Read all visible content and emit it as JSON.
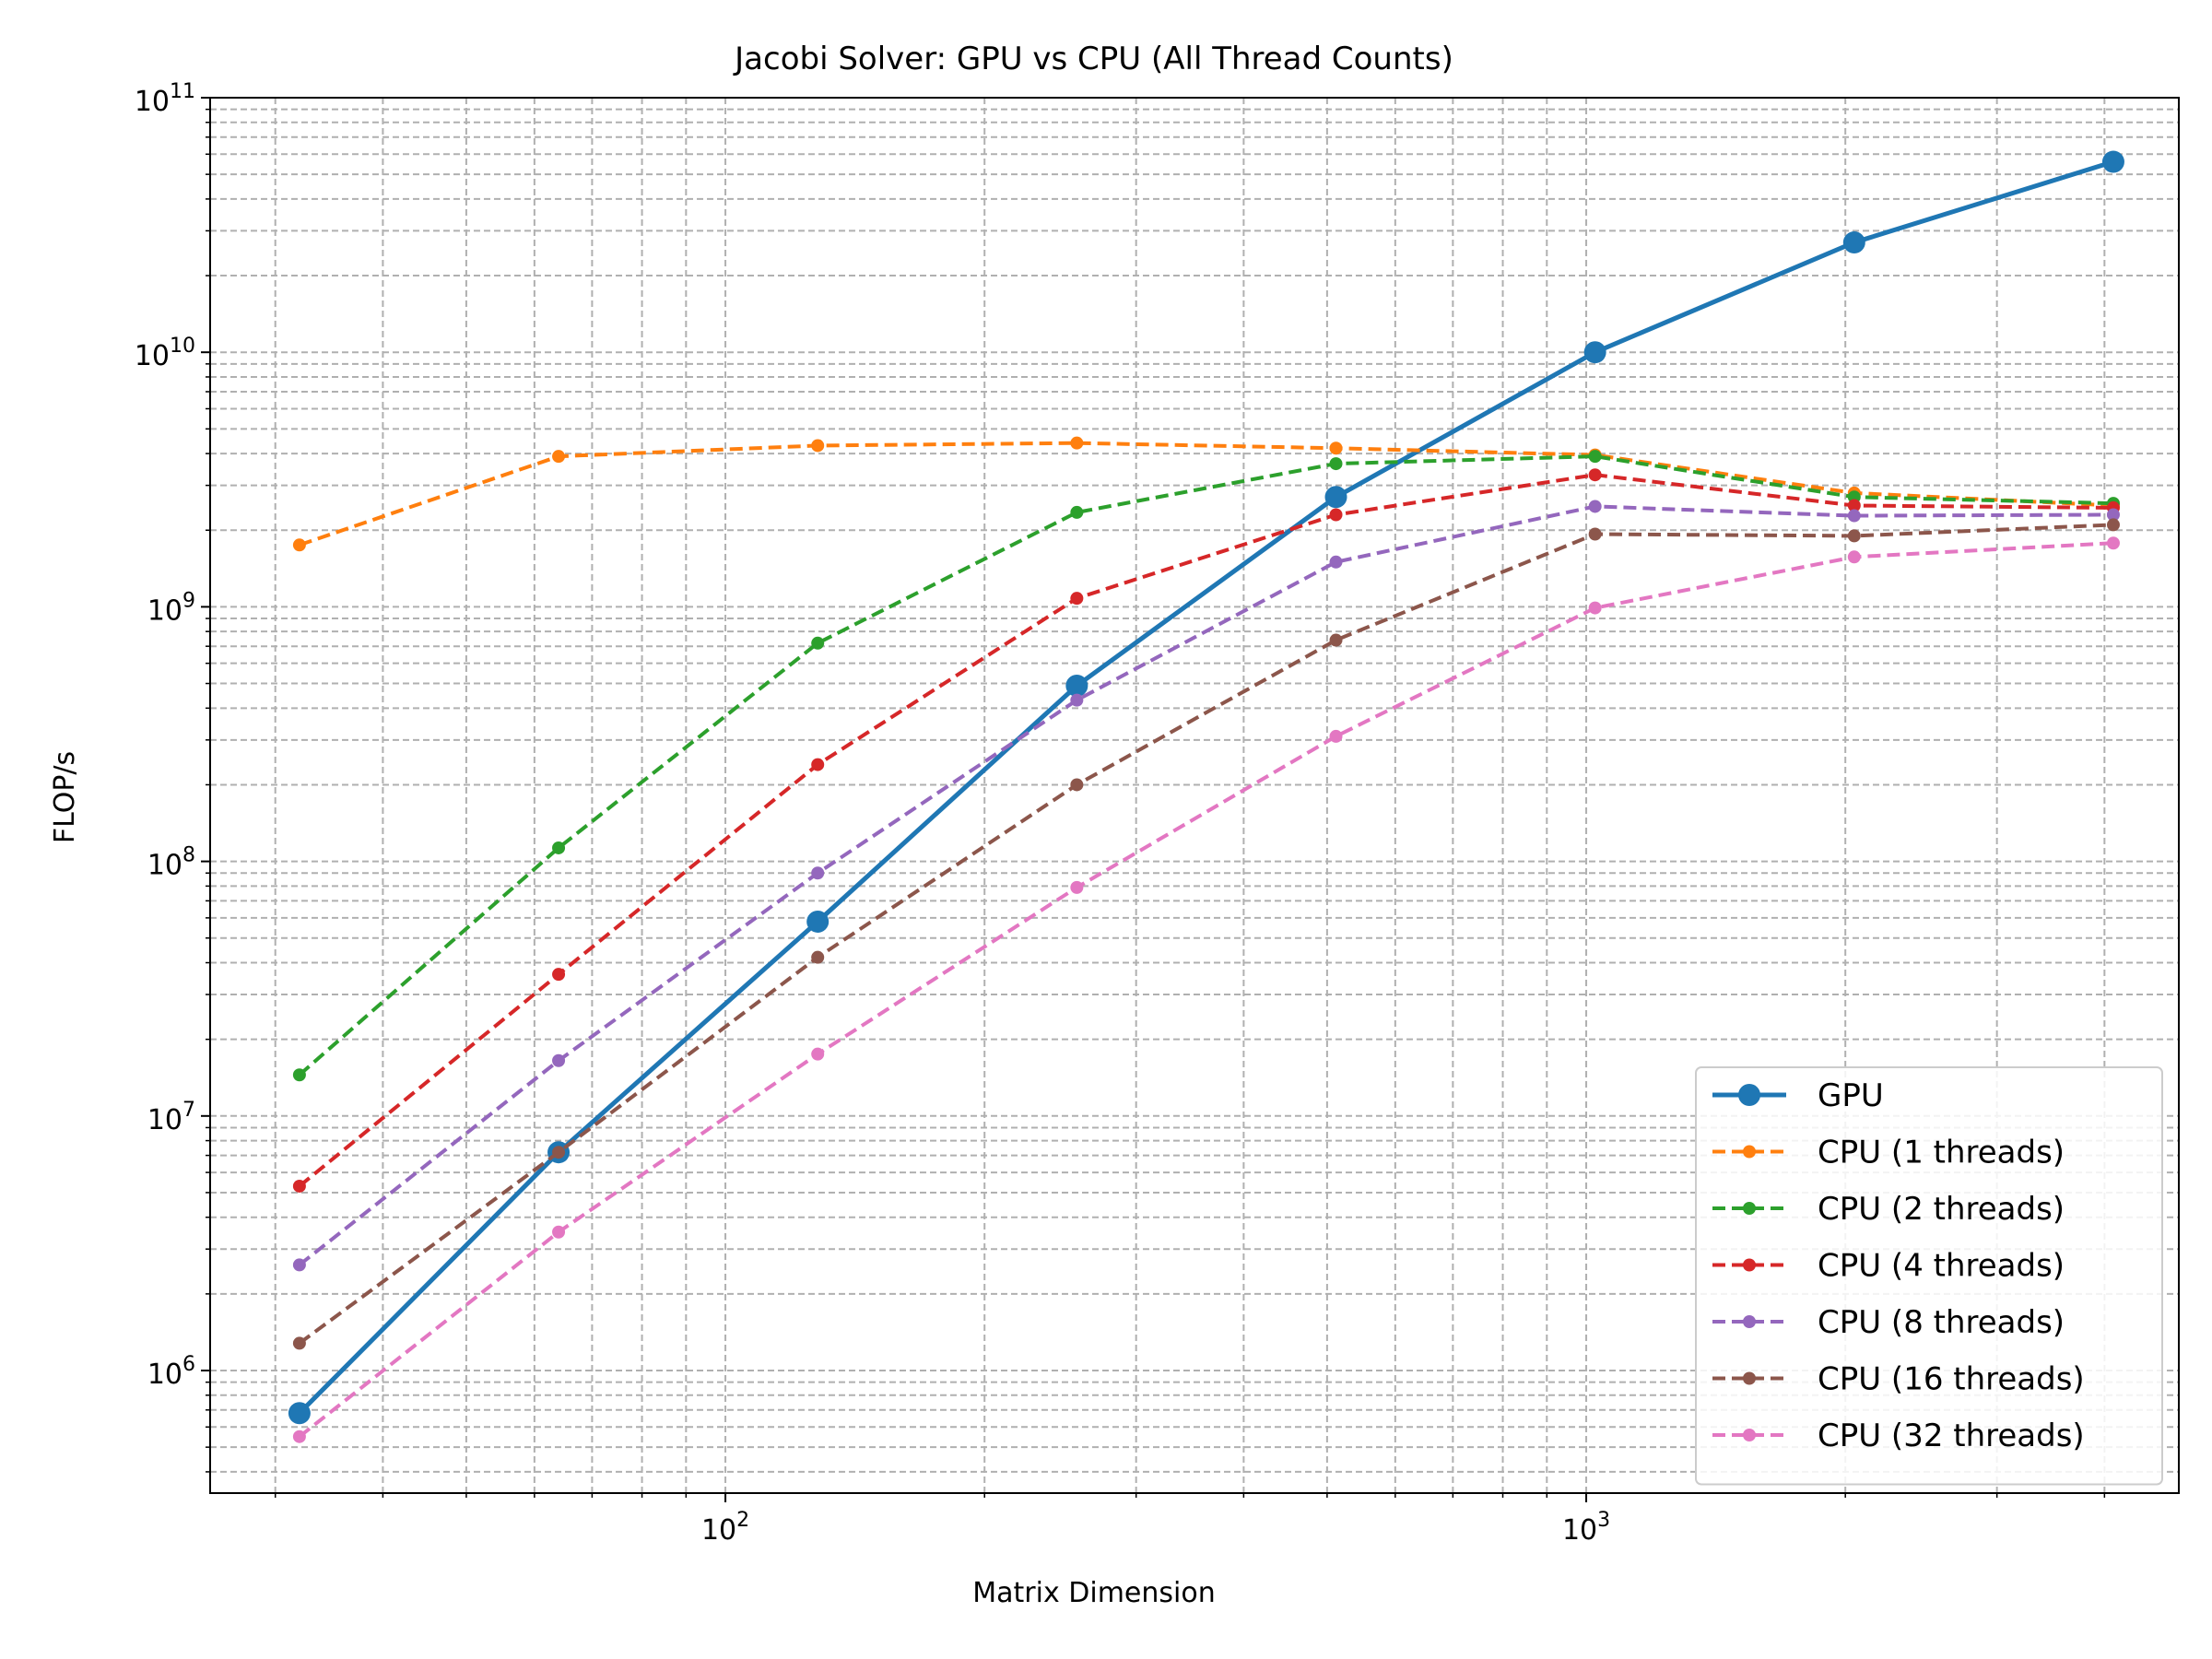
{
  "chart_data": {
    "type": "line",
    "title": "Jacobi Solver: GPU vs CPU (All Thread Counts)",
    "xlabel": "Matrix Dimension",
    "ylabel": "FLOP/s",
    "xscale": "log",
    "yscale": "log",
    "xlim": [
      25.2,
      4880
    ],
    "ylim": [
      330000,
      100000000000
    ],
    "grid": "major and minor, dashed",
    "legend_position": "lower-right",
    "x_tick_labels": [
      {
        "base": "10",
        "exp": "2",
        "value": 100
      },
      {
        "base": "10",
        "exp": "3",
        "value": 1000
      }
    ],
    "y_tick_labels": [
      {
        "base": "10",
        "exp": "6",
        "value": 1000000
      },
      {
        "base": "10",
        "exp": "7",
        "value": 10000000
      },
      {
        "base": "10",
        "exp": "8",
        "value": 100000000
      },
      {
        "base": "10",
        "exp": "9",
        "value": 1000000000
      },
      {
        "base": "10",
        "exp": "10",
        "value": 10000000000
      },
      {
        "base": "10",
        "exp": "11",
        "value": 100000000000
      }
    ],
    "x": [
      32,
      64,
      128,
      256,
      512,
      1024,
      2048,
      4096
    ],
    "series": [
      {
        "name": "GPU",
        "color": "#1f77b4",
        "style": "solid",
        "marker": "large",
        "values": [
          680000,
          7200000,
          58000000,
          490000000,
          2700000000,
          10000000000,
          27000000000,
          56000000000
        ]
      },
      {
        "name": "CPU (1 threads)",
        "color": "#ff7f0e",
        "style": "dashed",
        "marker": "small",
        "values": [
          1750000000,
          3900000000,
          4300000000,
          4400000000,
          4200000000,
          3950000000,
          2800000000,
          2500000000
        ]
      },
      {
        "name": "CPU (2 threads)",
        "color": "#2ca02c",
        "style": "dashed",
        "marker": "small",
        "values": [
          14500000,
          113000000,
          720000000,
          2350000000,
          3650000000,
          3900000000,
          2700000000,
          2550000000
        ]
      },
      {
        "name": "CPU (4 threads)",
        "color": "#d62728",
        "style": "dashed",
        "marker": "small",
        "values": [
          5300000,
          36000000,
          240000000,
          1080000000,
          2300000000,
          3300000000,
          2500000000,
          2450000000
        ]
      },
      {
        "name": "CPU (8 threads)",
        "color": "#9467bd",
        "style": "dashed",
        "marker": "small",
        "values": [
          2600000,
          16500000,
          90000000,
          430000000,
          1500000000,
          2480000000,
          2280000000,
          2300000000
        ]
      },
      {
        "name": "CPU (16 threads)",
        "color": "#8c564b",
        "style": "dashed",
        "marker": "small",
        "values": [
          1280000,
          7200000,
          42000000,
          200000000,
          740000000,
          1930000000,
          1900000000,
          2100000000
        ]
      },
      {
        "name": "CPU (32 threads)",
        "color": "#e377c2",
        "style": "dashed",
        "marker": "small",
        "values": [
          550000,
          3500000,
          17500000,
          79000000,
          310000000,
          990000000,
          1570000000,
          1780000000
        ]
      }
    ]
  }
}
